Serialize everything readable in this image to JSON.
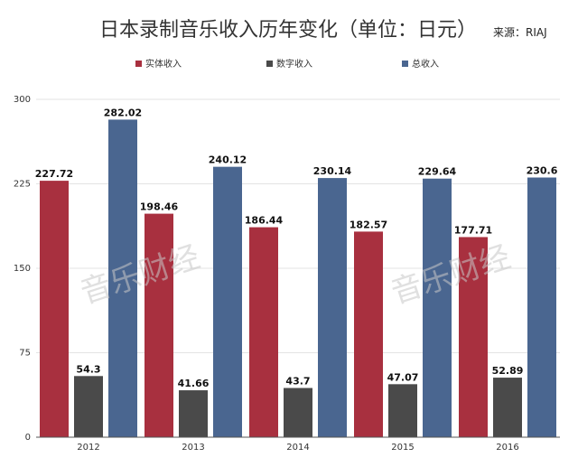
{
  "chart_data": {
    "type": "bar",
    "title": "日本录制音乐收入历年变化（单位：日元）",
    "source": "来源：RIAJ",
    "xlabel": "",
    "ylabel": "",
    "categories": [
      "2012",
      "2013",
      "2014",
      "2015",
      "2016"
    ],
    "yticks": [
      "0",
      "75",
      "150",
      "225",
      "300"
    ],
    "ylim": [
      0,
      300
    ],
    "grid": true,
    "legend_position": "top",
    "series": [
      {
        "name": "实体收入",
        "color": "#a8303f",
        "values": [
          227.72,
          198.46,
          186.44,
          182.57,
          177.71
        ],
        "labels": [
          "227.72",
          "198.46",
          "186.44",
          "182.57",
          "177.71"
        ]
      },
      {
        "name": "数字收入",
        "color": "#4a4a4a",
        "values": [
          54.3,
          41.66,
          43.7,
          47.07,
          52.89
        ],
        "labels": [
          "54.3",
          "41.66",
          "43.7",
          "47.07",
          "52.89"
        ]
      },
      {
        "name": "总收入",
        "color": "#4a6690",
        "values": [
          282.02,
          240.12,
          230.14,
          229.64,
          230.6
        ],
        "labels": [
          "282.02",
          "240.12",
          "230.14",
          "229.64",
          "230.6"
        ]
      }
    ],
    "watermark": "音乐财经"
  }
}
